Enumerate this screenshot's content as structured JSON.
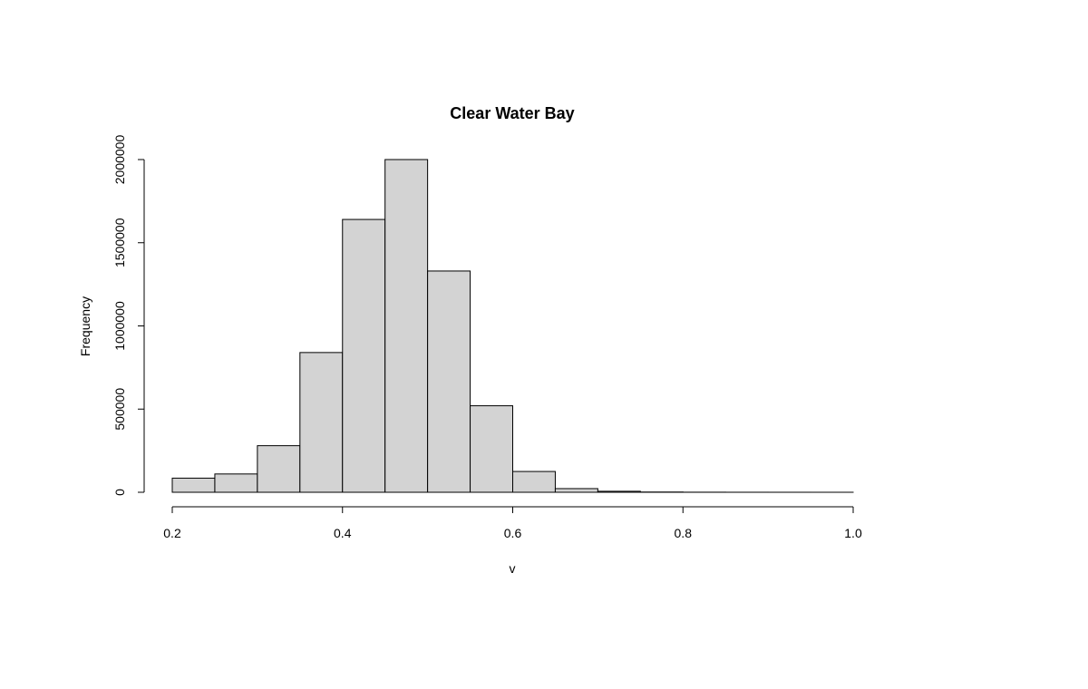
{
  "chart_data": {
    "type": "bar",
    "subtype": "histogram",
    "title": "Clear Water Bay",
    "xlabel": "v",
    "ylabel": "Frequency",
    "bin_edges": [
      0.2,
      0.25,
      0.3,
      0.35,
      0.4,
      0.45,
      0.5,
      0.55,
      0.6,
      0.65,
      0.7,
      0.75,
      0.8,
      0.85,
      0.9,
      0.95,
      1.0
    ],
    "values": [
      85000,
      110000,
      280000,
      840000,
      1640000,
      2000000,
      1330000,
      520000,
      125000,
      22000,
      6000,
      1500,
      500,
      200,
      100,
      50
    ],
    "xlim": [
      0.2,
      1.0
    ],
    "ylim": [
      0,
      2000000
    ],
    "x_ticks": [
      0.2,
      0.4,
      0.6,
      0.8,
      1.0
    ],
    "x_tick_labels": [
      "0.2",
      "0.4",
      "0.6",
      "0.8",
      "1.0"
    ],
    "y_ticks": [
      0,
      500000,
      1000000,
      1500000,
      2000000
    ],
    "y_tick_labels": [
      "0",
      "500000",
      "1000000",
      "1500000",
      "2000000"
    ],
    "grid": false,
    "legend": "none",
    "colors": {
      "bar_fill": "#d3d3d3",
      "bar_stroke": "#000000",
      "background": "#ffffff"
    }
  }
}
